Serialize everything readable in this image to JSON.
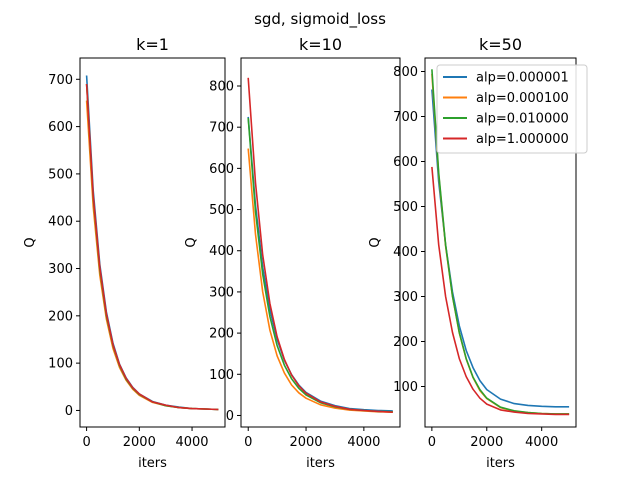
{
  "suptitle": "sgd, sigmoid_loss",
  "colors": {
    "alp=0.000001": "#1f77b4",
    "alp=0.000100": "#ff7f0e",
    "alp=0.010000": "#2ca02c",
    "alp=1.000000": "#d62728"
  },
  "chart_data": [
    {
      "type": "line",
      "title": "k=1",
      "xlabel": "iters",
      "ylabel": "Q",
      "xlim": [
        -250,
        5250
      ],
      "ylim": [
        -35,
        745
      ],
      "xticks": [
        0,
        2000,
        4000
      ],
      "yticks": [
        0,
        100,
        200,
        300,
        400,
        500,
        600,
        700
      ],
      "x": [
        0,
        250,
        500,
        750,
        1000,
        1250,
        1500,
        1750,
        2000,
        2500,
        3000,
        3500,
        4000,
        4500,
        5000
      ],
      "series": [
        {
          "name": "alp=0.000001",
          "values": [
            708,
            465,
            309,
            208,
            142,
            98,
            69,
            49,
            35,
            19,
            11,
            7,
            4,
            3,
            2
          ]
        },
        {
          "name": "alp=0.000100",
          "values": [
            655,
            431,
            286,
            193,
            131,
            91,
            64,
            45,
            32,
            17,
            10,
            6,
            4,
            3,
            2
          ]
        },
        {
          "name": "alp=0.010000",
          "values": [
            690,
            450,
            298,
            200,
            137,
            95,
            66,
            47,
            34,
            18,
            10,
            6,
            4,
            3,
            2
          ]
        },
        {
          "name": "alp=1.000000",
          "values": [
            690,
            455,
            303,
            204,
            139,
            97,
            68,
            48,
            35,
            18,
            11,
            6,
            4,
            3,
            2
          ]
        }
      ]
    },
    {
      "type": "line",
      "title": "k=10",
      "xlabel": "iters",
      "ylabel": "Q",
      "xlim": [
        -250,
        5250
      ],
      "ylim": [
        -28,
        868
      ],
      "xticks": [
        0,
        2000,
        4000
      ],
      "yticks": [
        0,
        100,
        200,
        300,
        400,
        500,
        600,
        700,
        800
      ],
      "x": [
        0,
        250,
        500,
        750,
        1000,
        1250,
        1500,
        1750,
        2000,
        2500,
        3000,
        3500,
        4000,
        4500,
        5000
      ],
      "series": [
        {
          "name": "alp=0.000001",
          "values": [
            725,
            510,
            360,
            257,
            185,
            134,
            99,
            74,
            56,
            35,
            24,
            17,
            14,
            12,
            11
          ]
        },
        {
          "name": "alp=0.000100",
          "values": [
            648,
            440,
            300,
            207,
            145,
            103,
            74,
            55,
            42,
            26,
            18,
            13,
            11,
            9,
            8
          ]
        },
        {
          "name": "alp=0.010000",
          "values": [
            722,
            495,
            343,
            240,
            170,
            122,
            89,
            66,
            50,
            31,
            21,
            15,
            12,
            10,
            9
          ]
        },
        {
          "name": "alp=1.000000",
          "values": [
            820,
            565,
            390,
            272,
            191,
            136,
            98,
            72,
            54,
            33,
            22,
            15,
            12,
            10,
            8
          ]
        }
      ]
    },
    {
      "type": "line",
      "title": "k=50",
      "xlabel": "iters",
      "ylabel": "Q",
      "xlim": [
        -250,
        5250
      ],
      "ylim": [
        10,
        830
      ],
      "xticks": [
        0,
        2000,
        4000
      ],
      "yticks": [
        100,
        200,
        300,
        400,
        500,
        600,
        700,
        800
      ],
      "x": [
        0,
        250,
        500,
        750,
        1000,
        1250,
        1500,
        1750,
        2000,
        2500,
        3000,
        3500,
        4000,
        4500,
        5000
      ],
      "series": [
        {
          "name": "alp=0.000001",
          "values": [
            760,
            555,
            415,
            310,
            235,
            180,
            142,
            113,
            93,
            72,
            62,
            58,
            56,
            55,
            55
          ]
        },
        {
          "name": "alp=0.000100",
          "values": [
            795,
            570,
            412,
            300,
            219,
            161,
            120,
            91,
            73,
            53,
            45,
            42,
            40,
            39,
            39
          ]
        },
        {
          "name": "alp=0.010000",
          "values": [
            805,
            575,
            415,
            301,
            220,
            162,
            121,
            93,
            74,
            54,
            46,
            42,
            40,
            39,
            39
          ]
        },
        {
          "name": "alp=1.000000",
          "values": [
            588,
            415,
            300,
            220,
            162,
            122,
            94,
            74,
            61,
            48,
            43,
            40,
            39,
            38,
            38
          ]
        }
      ],
      "legend": {
        "location": "top-right",
        "entries": [
          "alp=0.000001",
          "alp=0.000100",
          "alp=0.010000",
          "alp=1.000000"
        ]
      }
    }
  ]
}
